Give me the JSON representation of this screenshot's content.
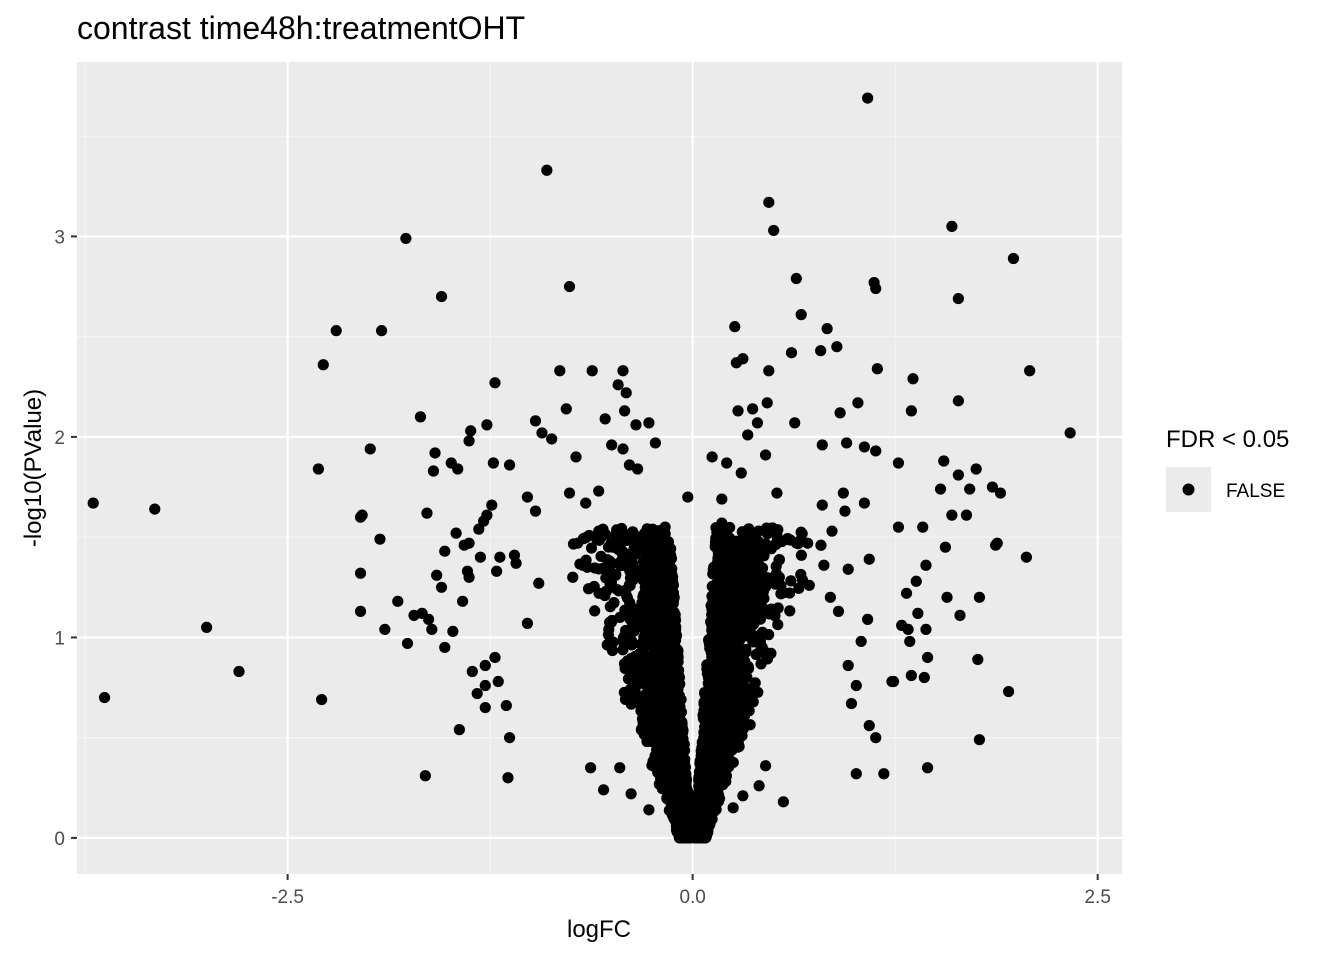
{
  "chart_data": {
    "type": "scatter",
    "title": "contrast time48h:treatmentOHT",
    "xlabel": "logFC",
    "ylabel": "-log10(PValue)",
    "xlim": [
      -3.8,
      2.65
    ],
    "ylim": [
      -0.18,
      3.87
    ],
    "x_ticks": [
      {
        "value": -2.5,
        "label": "-2.5"
      },
      {
        "value": 0.0,
        "label": "0.0"
      },
      {
        "value": 2.5,
        "label": "2.5"
      }
    ],
    "y_ticks": [
      {
        "value": 0,
        "label": "0"
      },
      {
        "value": 1,
        "label": "1"
      },
      {
        "value": 2,
        "label": "2"
      },
      {
        "value": 3,
        "label": "3"
      }
    ],
    "grid": true,
    "panel_background": "#ebebeb",
    "point_color": "#000000",
    "legend": {
      "title": "FDR < 0.05",
      "position": "right",
      "entries": [
        {
          "label": "FALSE",
          "color": "#000000"
        }
      ]
    },
    "series": [
      {
        "name": "FALSE",
        "points": [
          [
            1.08,
            3.69
          ],
          [
            -0.9,
            3.33
          ],
          [
            0.47,
            3.17
          ],
          [
            0.5,
            3.03
          ],
          [
            1.6,
            3.05
          ],
          [
            -1.77,
            2.99
          ],
          [
            1.98,
            2.89
          ],
          [
            0.64,
            2.79
          ],
          [
            1.12,
            2.77
          ],
          [
            1.13,
            2.74
          ],
          [
            -0.76,
            2.75
          ],
          [
            -1.55,
            2.7
          ],
          [
            1.64,
            2.69
          ],
          [
            0.67,
            2.61
          ],
          [
            0.26,
            2.55
          ],
          [
            0.83,
            2.54
          ],
          [
            -2.2,
            2.53
          ],
          [
            -1.92,
            2.53
          ],
          [
            0.89,
            2.45
          ],
          [
            0.79,
            2.43
          ],
          [
            0.61,
            2.42
          ],
          [
            0.31,
            2.39
          ],
          [
            0.27,
            2.37
          ],
          [
            -2.28,
            2.36
          ],
          [
            0.47,
            2.33
          ],
          [
            -0.82,
            2.33
          ],
          [
            -0.62,
            2.33
          ],
          [
            -0.43,
            2.33
          ],
          [
            1.14,
            2.34
          ],
          [
            2.08,
            2.33
          ],
          [
            1.36,
            2.29
          ],
          [
            -1.22,
            2.27
          ],
          [
            -0.46,
            2.26
          ],
          [
            -0.41,
            2.22
          ],
          [
            1.64,
            2.18
          ],
          [
            1.02,
            2.17
          ],
          [
            0.46,
            2.17
          ],
          [
            -0.78,
            2.14
          ],
          [
            -0.42,
            2.13
          ],
          [
            1.35,
            2.13
          ],
          [
            0.37,
            2.14
          ],
          [
            0.91,
            2.12
          ],
          [
            0.28,
            2.13
          ],
          [
            -1.68,
            2.1
          ],
          [
            -0.54,
            2.09
          ],
          [
            -0.97,
            2.08
          ],
          [
            0.4,
            2.07
          ],
          [
            -0.35,
            2.06
          ],
          [
            -0.27,
            2.07
          ],
          [
            -1.27,
            2.06
          ],
          [
            0.63,
            2.07
          ],
          [
            2.33,
            2.02
          ],
          [
            -1.37,
            2.03
          ],
          [
            -0.93,
            2.02
          ],
          [
            -0.87,
            1.99
          ],
          [
            -0.23,
            1.97
          ],
          [
            0.34,
            2.01
          ],
          [
            -1.38,
            1.98
          ],
          [
            0.8,
            1.96
          ],
          [
            0.95,
            1.97
          ],
          [
            1.06,
            1.95
          ],
          [
            -1.99,
            1.94
          ],
          [
            1.13,
            1.93
          ],
          [
            -0.5,
            1.96
          ],
          [
            -0.43,
            1.94
          ],
          [
            -1.59,
            1.92
          ],
          [
            0.12,
            1.9
          ],
          [
            -0.72,
            1.9
          ],
          [
            0.45,
            1.91
          ],
          [
            -1.49,
            1.87
          ],
          [
            -0.39,
            1.86
          ],
          [
            -1.13,
            1.86
          ],
          [
            -1.23,
            1.87
          ],
          [
            1.55,
            1.88
          ],
          [
            0.21,
            1.87
          ],
          [
            1.27,
            1.87
          ],
          [
            -0.34,
            1.84
          ],
          [
            1.75,
            1.84
          ],
          [
            -2.31,
            1.84
          ],
          [
            -1.6,
            1.83
          ],
          [
            -1.45,
            1.84
          ],
          [
            0.3,
            1.82
          ],
          [
            1.64,
            1.81
          ],
          [
            1.53,
            1.74
          ],
          [
            1.85,
            1.75
          ],
          [
            1.71,
            1.74
          ],
          [
            1.9,
            1.72
          ],
          [
            -1.02,
            1.7
          ],
          [
            0.93,
            1.72
          ],
          [
            -0.76,
            1.72
          ],
          [
            -0.58,
            1.73
          ],
          [
            0.52,
            1.72
          ],
          [
            -3.7,
            1.67
          ],
          [
            -3.32,
            1.64
          ],
          [
            0.18,
            1.69
          ],
          [
            -0.03,
            1.7
          ],
          [
            -1.24,
            1.66
          ],
          [
            -0.97,
            1.63
          ],
          [
            -0.66,
            1.67
          ],
          [
            1.06,
            1.67
          ],
          [
            0.8,
            1.66
          ],
          [
            -2.04,
            1.61
          ],
          [
            -2.05,
            1.6
          ],
          [
            -1.64,
            1.62
          ],
          [
            -1.27,
            1.61
          ],
          [
            -1.29,
            1.58
          ],
          [
            0.94,
            1.63
          ],
          [
            1.6,
            1.61
          ],
          [
            1.69,
            1.61
          ],
          [
            -1.32,
            1.54
          ],
          [
            1.27,
            1.55
          ],
          [
            1.42,
            1.55
          ],
          [
            0.86,
            1.53
          ],
          [
            -0.58,
            1.53
          ],
          [
            -0.17,
            1.55
          ],
          [
            -1.46,
            1.52
          ],
          [
            -1.38,
            1.47
          ],
          [
            -1.41,
            1.46
          ],
          [
            0.18,
            1.57
          ],
          [
            -1.93,
            1.49
          ],
          [
            1.56,
            1.45
          ],
          [
            1.87,
            1.46
          ],
          [
            1.88,
            1.47
          ],
          [
            -1.53,
            1.43
          ],
          [
            -0.71,
            1.47
          ],
          [
            0.71,
            1.47
          ],
          [
            -1.31,
            1.4
          ],
          [
            2.06,
            1.4
          ],
          [
            -1.19,
            1.4
          ],
          [
            1.09,
            1.39
          ],
          [
            -1.1,
            1.41
          ],
          [
            -1.09,
            1.37
          ],
          [
            1.44,
            1.36
          ],
          [
            0.81,
            1.36
          ],
          [
            0.96,
            1.34
          ],
          [
            -0.65,
            1.35
          ],
          [
            -1.21,
            1.33
          ],
          [
            -1.39,
            1.33
          ],
          [
            -2.05,
            1.32
          ],
          [
            -1.38,
            1.3
          ],
          [
            -1.58,
            1.31
          ],
          [
            -0.74,
            1.3
          ],
          [
            1.38,
            1.28
          ],
          [
            -0.95,
            1.27
          ],
          [
            -0.51,
            1.27
          ],
          [
            -0.21,
            1.26
          ],
          [
            -1.55,
            1.25
          ],
          [
            -1.82,
            1.18
          ],
          [
            -1.42,
            1.18
          ],
          [
            0.72,
            1.26
          ],
          [
            0.21,
            1.25
          ],
          [
            0.85,
            1.2
          ],
          [
            1.77,
            1.2
          ],
          [
            1.57,
            1.2
          ],
          [
            1.32,
            1.22
          ],
          [
            -2.05,
            1.13
          ],
          [
            -1.67,
            1.12
          ],
          [
            -1.63,
            1.09
          ],
          [
            -1.72,
            1.11
          ],
          [
            -1.02,
            1.07
          ],
          [
            1.65,
            1.11
          ],
          [
            1.39,
            1.12
          ],
          [
            1.08,
            1.09
          ],
          [
            0.9,
            1.13
          ],
          [
            -1.9,
            1.04
          ],
          [
            -1.61,
            1.04
          ],
          [
            -1.48,
            1.03
          ],
          [
            1.29,
            1.06
          ],
          [
            1.33,
            1.04
          ],
          [
            1.44,
            1.04
          ],
          [
            -3.0,
            1.05
          ],
          [
            -1.76,
            0.97
          ],
          [
            -1.53,
            0.95
          ],
          [
            1.34,
            0.98
          ],
          [
            1.04,
            0.98
          ],
          [
            1.45,
            0.9
          ],
          [
            -1.22,
            0.9
          ],
          [
            -1.28,
            0.86
          ],
          [
            -1.36,
            0.83
          ],
          [
            1.76,
            0.89
          ],
          [
            0.96,
            0.86
          ],
          [
            -2.8,
            0.83
          ],
          [
            -1.2,
            0.78
          ],
          [
            1.43,
            0.8
          ],
          [
            1.35,
            0.81
          ],
          [
            1.24,
            0.78
          ],
          [
            -1.28,
            0.76
          ],
          [
            -1.33,
            0.72
          ],
          [
            1.23,
            0.78
          ],
          [
            1.01,
            0.76
          ],
          [
            -3.63,
            0.7
          ],
          [
            -2.29,
            0.69
          ],
          [
            1.95,
            0.73
          ],
          [
            -1.15,
            0.66
          ],
          [
            -1.28,
            0.65
          ],
          [
            0.98,
            0.67
          ],
          [
            -1.44,
            0.54
          ],
          [
            1.09,
            0.56
          ],
          [
            -1.13,
            0.5
          ],
          [
            1.13,
            0.5
          ],
          [
            1.77,
            0.49
          ],
          [
            -1.65,
            0.31
          ],
          [
            -1.14,
            0.3
          ],
          [
            1.01,
            0.32
          ],
          [
            1.18,
            0.32
          ],
          [
            1.45,
            0.35
          ],
          [
            0.56,
            0.18
          ],
          [
            -0.63,
            0.35
          ],
          [
            -0.45,
            0.35
          ],
          [
            0.45,
            0.36
          ],
          [
            -0.55,
            0.24
          ],
          [
            0.41,
            0.26
          ],
          [
            -0.38,
            0.22
          ],
          [
            0.31,
            0.21
          ],
          [
            -0.27,
            0.14
          ],
          [
            0.25,
            0.15
          ]
        ]
      }
    ],
    "dense_core": {
      "description_only_for_rendering": false,
      "n_points": 3200,
      "shape": "v-shaped",
      "x_spread_at_peak": 1.15,
      "y_max": 1.55
    }
  }
}
